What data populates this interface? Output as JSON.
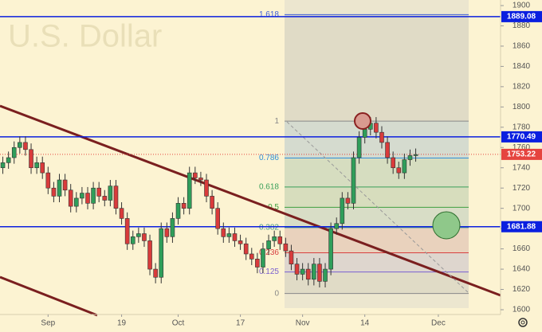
{
  "chart_data": {
    "type": "candlestick",
    "watermark": "U.S. Dollar",
    "up_color": "#2f9e5a",
    "down_color": "#d93b3b",
    "background": "#fcf3d2",
    "ylim": [
      1600,
      1900
    ],
    "yticks": [
      1600,
      1620,
      1640,
      1660,
      1680,
      1700,
      1720,
      1740,
      1760,
      1780,
      1800,
      1820,
      1840,
      1860,
      1880,
      1900
    ],
    "xlim": [
      -0.5,
      88
    ],
    "xticks": [
      {
        "value": 8,
        "label": "Sep"
      },
      {
        "value": 21,
        "label": "19"
      },
      {
        "value": 31,
        "label": "Oct"
      },
      {
        "value": 42,
        "label": "17"
      },
      {
        "value": 53,
        "label": "Nov"
      },
      {
        "value": 64,
        "label": "14"
      },
      {
        "value": 77,
        "label": "Dec"
      }
    ],
    "open": [
      1740,
      1745,
      1750,
      1760,
      1765,
      1758,
      1740,
      1745,
      1735,
      1720,
      1712,
      1728,
      1718,
      1702,
      1710,
      1715,
      1705,
      1720,
      1712,
      1708,
      1722,
      1700,
      1690,
      1665,
      1672,
      1675,
      1668,
      1640,
      1632,
      1680,
      1672,
      1690,
      1705,
      1700,
      1735,
      1730,
      1728,
      1712,
      1700,
      1680,
      1672,
      1675,
      1668,
      1665,
      1655,
      1650,
      1642,
      1660,
      1668,
      1672,
      1665,
      1658,
      1645,
      1635,
      1640,
      1630,
      1645,
      1628,
      1640,
      1680,
      1685,
      1710,
      1705,
      1750,
      1770,
      1778,
      1784,
      1775,
      1765,
      1750,
      1740,
      1735,
      1748,
      1752
    ],
    "high": [
      1751,
      1756,
      1766,
      1771,
      1771,
      1764,
      1751,
      1751,
      1741,
      1726,
      1734,
      1734,
      1724,
      1716,
      1721,
      1721,
      1726,
      1726,
      1718,
      1728,
      1728,
      1706,
      1696,
      1678,
      1681,
      1681,
      1674,
      1646,
      1686,
      1686,
      1696,
      1711,
      1711,
      1741,
      1741,
      1736,
      1734,
      1718,
      1706,
      1686,
      1681,
      1681,
      1674,
      1671,
      1661,
      1656,
      1666,
      1674,
      1678,
      1678,
      1671,
      1664,
      1651,
      1646,
      1646,
      1651,
      1651,
      1646,
      1686,
      1691,
      1716,
      1716,
      1756,
      1776,
      1784,
      1790,
      1790,
      1781,
      1771,
      1756,
      1746,
      1754,
      1758,
      1759
    ],
    "low": [
      1734,
      1739,
      1744,
      1754,
      1752,
      1734,
      1734,
      1729,
      1714,
      1706,
      1706,
      1712,
      1696,
      1696,
      1704,
      1699,
      1699,
      1706,
      1702,
      1702,
      1694,
      1684,
      1659,
      1659,
      1666,
      1662,
      1634,
      1626,
      1626,
      1666,
      1666,
      1684,
      1694,
      1694,
      1724,
      1722,
      1706,
      1694,
      1674,
      1666,
      1666,
      1662,
      1659,
      1649,
      1644,
      1636,
      1636,
      1654,
      1662,
      1659,
      1652,
      1639,
      1629,
      1629,
      1624,
      1624,
      1622,
      1622,
      1634,
      1674,
      1679,
      1699,
      1699,
      1744,
      1764,
      1772,
      1769,
      1759,
      1744,
      1734,
      1729,
      1729,
      1742,
      1746
    ],
    "close": [
      1745,
      1750,
      1760,
      1765,
      1758,
      1740,
      1745,
      1735,
      1720,
      1712,
      1728,
      1718,
      1702,
      1710,
      1715,
      1705,
      1720,
      1712,
      1708,
      1722,
      1700,
      1690,
      1665,
      1672,
      1675,
      1668,
      1640,
      1632,
      1680,
      1672,
      1690,
      1705,
      1700,
      1735,
      1730,
      1728,
      1712,
      1700,
      1680,
      1672,
      1675,
      1668,
      1665,
      1655,
      1650,
      1642,
      1660,
      1668,
      1672,
      1665,
      1658,
      1645,
      1635,
      1640,
      1630,
      1645,
      1628,
      1640,
      1680,
      1685,
      1710,
      1705,
      1750,
      1770,
      1778,
      1784,
      1775,
      1765,
      1750,
      1740,
      1735,
      1748,
      1752,
      1753
    ],
    "horizontal_lines": [
      {
        "value": 1889.08,
        "color": "#0a1fe0"
      },
      {
        "value": 1770.49,
        "color": "#0a1fe0"
      },
      {
        "value": 1681.88,
        "color": "#0a1fe0"
      }
    ],
    "last_price": {
      "value": 1753.22,
      "color": "#e5443f"
    },
    "fibonacci": {
      "start": 1616,
      "end": 1786,
      "levels": [
        {
          "value": 1.618,
          "color": "#3f5fd8"
        },
        {
          "value": 1,
          "color": "#888888"
        },
        {
          "value": 0.786,
          "color": "#2f8fd8"
        },
        {
          "value": 0.618,
          "color": "#3aa05a"
        },
        {
          "value": 0.5,
          "color": "#3f9f3f"
        },
        {
          "value": 0.382,
          "color": "#4a9a8a"
        },
        {
          "value": 0.236,
          "color": "#d84040"
        },
        {
          "value": 0.125,
          "color": "#7a5fd0"
        },
        {
          "value": 0,
          "color": "#888888"
        }
      ]
    }
  }
}
